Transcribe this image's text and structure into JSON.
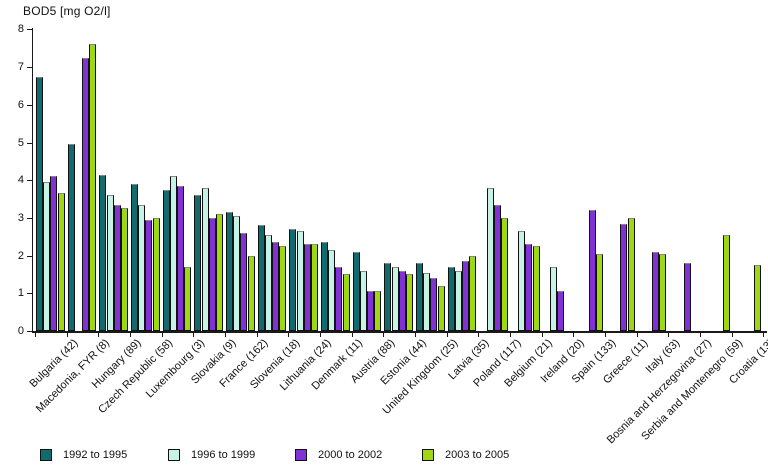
{
  "chart_data": {
    "type": "bar",
    "title": "BOD5 [mg O2/l]",
    "ylabel": "BOD5 [mg O2/l]",
    "xlabel": "",
    "ylim": [
      0,
      8
    ],
    "yticks": [
      0,
      1,
      2,
      3,
      4,
      5,
      6,
      7,
      8
    ],
    "grid": false,
    "legend_position": "bottom-left",
    "categories": [
      "Bulgaria (42)",
      "Macedonia, FYR (8)",
      "Hungary (89)",
      "Czech Republic (58)",
      "Luxembourg (3)",
      "Slovakia (9)",
      "France (162)",
      "Slovenia (18)",
      "Lithuania (24)",
      "Denmark (11)",
      "Austria (88)",
      "Estonia (44)",
      "United Kingdom (25)",
      "Latvia (35)",
      "Poland (117)",
      "Belgium (21)",
      "Ireland (20)",
      "Spain (133)",
      "Greece (11)",
      "Italy (63)",
      "Bosnia and Herzegovina (27)",
      "Serbia and Montenegro (59)",
      "Croatia (13)"
    ],
    "series": [
      {
        "name": "1992 to 1995",
        "color": "#0f6b6e",
        "values": [
          6.75,
          4.95,
          4.15,
          3.9,
          3.75,
          3.6,
          3.15,
          2.8,
          2.7,
          2.35,
          2.1,
          1.8,
          1.8,
          1.7,
          null,
          null,
          null,
          null,
          null,
          null,
          null,
          null,
          null
        ]
      },
      {
        "name": "1996 to 1999",
        "color": "#c6f3e6",
        "values": [
          3.95,
          null,
          3.6,
          3.35,
          4.1,
          3.8,
          3.05,
          2.55,
          2.65,
          2.15,
          1.6,
          1.7,
          1.55,
          1.6,
          3.8,
          2.65,
          1.7,
          null,
          null,
          null,
          null,
          null,
          null
        ]
      },
      {
        "name": "2000 to 2002",
        "color": "#8231d4",
        "values": [
          4.1,
          7.25,
          3.35,
          2.95,
          3.85,
          3.0,
          2.6,
          2.35,
          2.3,
          1.7,
          1.05,
          1.6,
          1.4,
          1.85,
          3.35,
          2.3,
          1.05,
          3.2,
          2.85,
          2.1,
          1.8,
          null,
          null
        ]
      },
      {
        "name": "2003 to 2005",
        "color": "#9fd813",
        "values": [
          3.65,
          7.6,
          3.25,
          3.0,
          1.7,
          3.1,
          2.0,
          2.25,
          2.3,
          1.5,
          1.05,
          1.5,
          1.2,
          2.0,
          3.0,
          2.25,
          null,
          2.05,
          3.0,
          2.05,
          null,
          2.55,
          1.75
        ]
      }
    ]
  }
}
